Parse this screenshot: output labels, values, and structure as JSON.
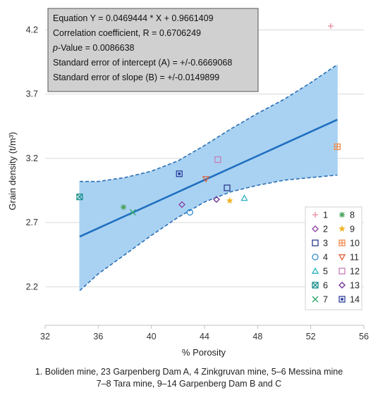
{
  "chart_data": {
    "type": "scatter",
    "xlabel": "% Porosity",
    "ylabel": "Grain density (t/m³)",
    "xlim": [
      32,
      56
    ],
    "ylim": [
      1.9,
      4.4
    ],
    "x_ticks": [
      "32",
      "36",
      "40",
      "44",
      "48",
      "52",
      "56"
    ],
    "y_ticks": [
      "2.2",
      "2.7",
      "3.2",
      "3.7",
      "4.2"
    ],
    "y_tick_values": [
      2.2,
      2.7,
      3.2,
      3.7,
      4.2
    ],
    "x_tick_values": [
      32,
      36,
      40,
      44,
      48,
      52,
      56
    ],
    "grid": "horizontal",
    "legend_position": "bottom-right",
    "annotation": [
      "Equation Y = 0.0469444 * X + 0.9661409",
      "Correlation coefficient, R = 0.6706249",
      "p-Value = 0.0086638",
      "Standard error of intercept (A) = +/-0.6669068",
      "Standard error of slope (B) = +/-0.0149899"
    ],
    "regression": {
      "slope": 0.0469444,
      "intercept": 0.9661409,
      "x_range": [
        34.6,
        54.0
      ]
    },
    "confidence_band": {
      "upper": [
        [
          34.6,
          3.02
        ],
        [
          36,
          3.02
        ],
        [
          38,
          3.05
        ],
        [
          40,
          3.1
        ],
        [
          42,
          3.18
        ],
        [
          44,
          3.3
        ],
        [
          46,
          3.43
        ],
        [
          48,
          3.55
        ],
        [
          50,
          3.66
        ],
        [
          52,
          3.79
        ],
        [
          54,
          3.93
        ]
      ],
      "lower": [
        [
          34.6,
          2.17
        ],
        [
          36,
          2.3
        ],
        [
          38,
          2.45
        ],
        [
          40,
          2.6
        ],
        [
          42,
          2.74
        ],
        [
          44,
          2.86
        ],
        [
          46,
          2.94
        ],
        [
          48,
          2.99
        ],
        [
          50,
          3.03
        ],
        [
          52,
          3.05
        ],
        [
          54,
          3.07
        ]
      ]
    },
    "series": [
      {
        "name": "1",
        "marker": "plus",
        "color": "#e8899a",
        "points": [
          [
            53.5,
            4.23
          ]
        ]
      },
      {
        "name": "2",
        "marker": "diamond",
        "color": "#8a3fa0",
        "points": [
          [
            42.3,
            2.84
          ]
        ]
      },
      {
        "name": "3",
        "marker": "square",
        "color": "#2b3a8c",
        "points": [
          [
            45.7,
            2.97
          ]
        ]
      },
      {
        "name": "4",
        "marker": "circle",
        "color": "#2f8fd0",
        "points": [
          [
            42.9,
            2.78
          ]
        ]
      },
      {
        "name": "5",
        "marker": "triangle",
        "color": "#2fb3c2",
        "points": [
          [
            47.0,
            2.89
          ]
        ]
      },
      {
        "name": "6",
        "marker": "box-x",
        "color": "#1a8f8a",
        "points": [
          [
            34.6,
            2.9
          ]
        ]
      },
      {
        "name": "7",
        "marker": "x",
        "color": "#2ea86a",
        "points": [
          [
            38.6,
            2.78
          ]
        ]
      },
      {
        "name": "8",
        "marker": "asterisk",
        "color": "#4aa35a",
        "points": [
          [
            37.9,
            2.82
          ]
        ]
      },
      {
        "name": "9",
        "marker": "star",
        "color": "#f0b429",
        "points": [
          [
            45.9,
            2.87
          ]
        ]
      },
      {
        "name": "10",
        "marker": "box-plus",
        "color": "#f08a4b",
        "points": [
          [
            54.0,
            3.29
          ]
        ]
      },
      {
        "name": "11",
        "marker": "triangle-down",
        "color": "#e0603a",
        "points": [
          [
            44.1,
            3.04
          ]
        ]
      },
      {
        "name": "12",
        "marker": "square",
        "color": "#c77db5",
        "points": [
          [
            45.0,
            3.19
          ]
        ]
      },
      {
        "name": "13",
        "marker": "diamond",
        "color": "#6a2c8f",
        "points": [
          [
            44.9,
            2.88
          ]
        ]
      },
      {
        "name": "14",
        "marker": "box-dot",
        "color": "#2b3f9c",
        "points": [
          [
            42.1,
            3.08
          ]
        ]
      }
    ]
  },
  "caption": {
    "line1": "1. Boliden mine, 23 Garpenberg Dam A, 4 Zinkgruvan mine, 5–6 Messina mine",
    "line2": "7–8 Tara mine, 9–14 Garpenberg Dam B and C"
  },
  "colors": {
    "band_fill": "#a9d2f2",
    "band_edge": "#2a6fb5",
    "line": "#1f6fc0",
    "grid": "#d9d9d9",
    "annotation_bg": "#d0d0d0"
  }
}
